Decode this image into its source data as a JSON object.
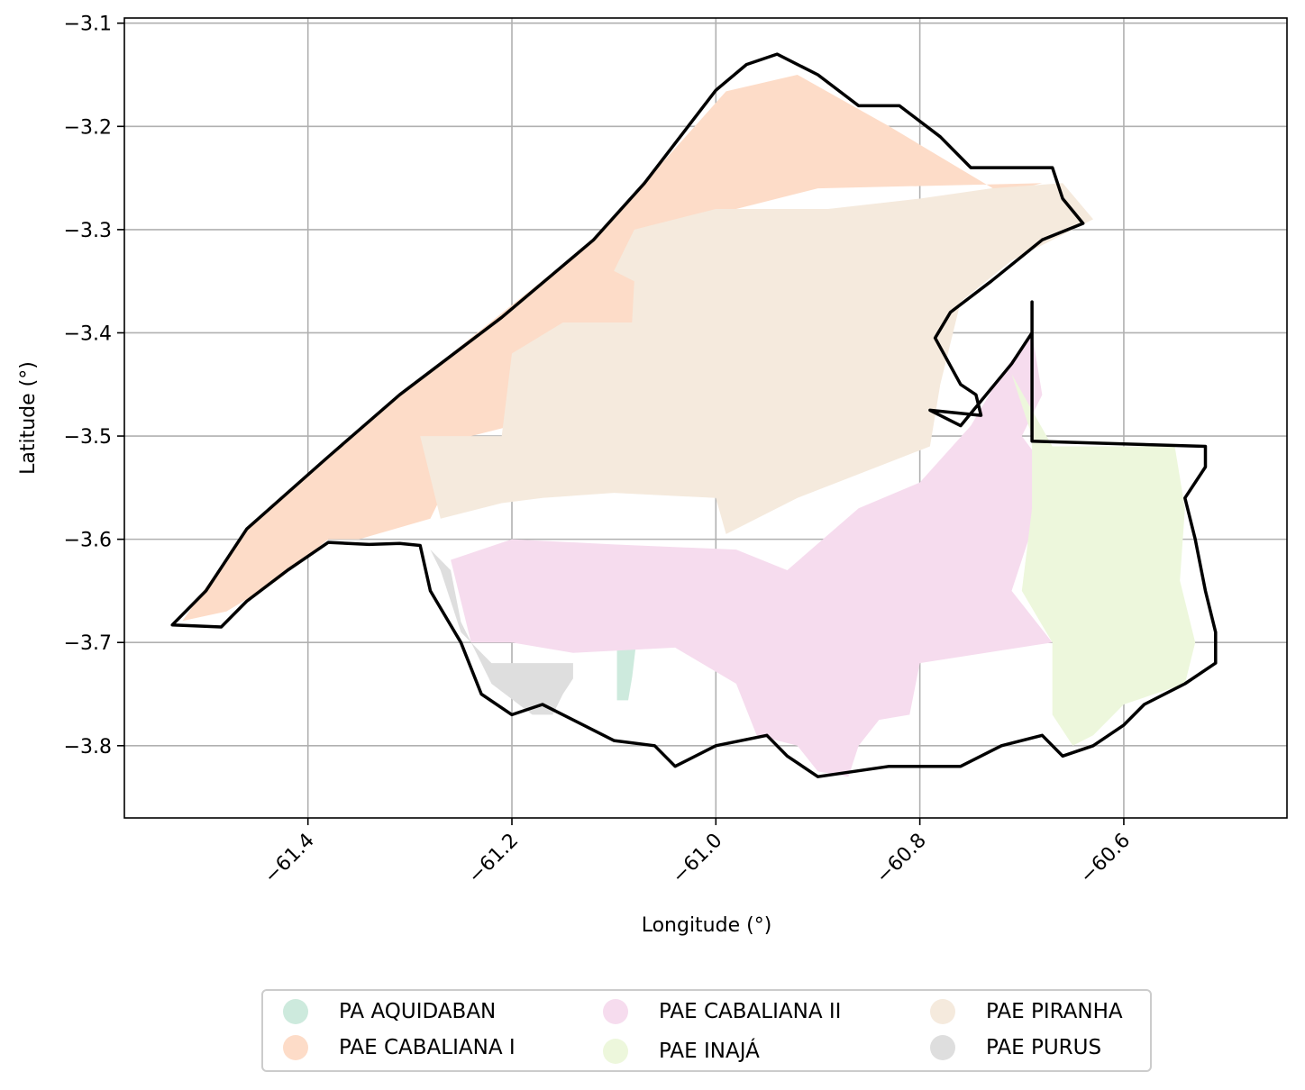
{
  "chart_data": {
    "type": "map",
    "xlabel": "Longitude (°)",
    "ylabel": "Latitude (°)",
    "xlim": [
      -61.58,
      -60.44
    ],
    "ylim": [
      -3.87,
      -3.095
    ],
    "x_ticks": [
      -61.4,
      -61.2,
      -61.0,
      -60.8,
      -60.6
    ],
    "x_tick_labels": [
      "−61.4",
      "−61.2",
      "−61.0",
      "−60.8",
      "−60.6"
    ],
    "y_ticks": [
      -3.1,
      -3.2,
      -3.3,
      -3.4,
      -3.5,
      -3.6,
      -3.7,
      -3.8
    ],
    "y_tick_labels": [
      "−3.1",
      "−3.2",
      "−3.3",
      "−3.4",
      "−3.5",
      "−3.6",
      "−3.7",
      "−3.8"
    ],
    "grid": true,
    "legend_placement": "bottom-center",
    "boundary_color": "#000000",
    "regions": [
      {
        "name": "PA AQUIDABAN",
        "color": "#cdeadd",
        "polygon": [
          [
            -61.097,
            -3.693
          ],
          [
            -61.077,
            -3.691
          ],
          [
            -61.082,
            -3.733
          ],
          [
            -61.086,
            -3.756
          ],
          [
            -61.097,
            -3.756
          ]
        ]
      },
      {
        "name": "PAE CABALIANA I",
        "color": "#fddcc8",
        "polygon": [
          [
            -61.523,
            -3.679
          ],
          [
            -61.46,
            -3.59
          ],
          [
            -61.31,
            -3.46
          ],
          [
            -61.12,
            -3.31
          ],
          [
            -60.99,
            -3.166
          ],
          [
            -60.92,
            -3.15
          ],
          [
            -60.83,
            -3.2
          ],
          [
            -60.72,
            -3.265
          ],
          [
            -60.68,
            -3.255
          ],
          [
            -60.9,
            -3.26
          ],
          [
            -61.06,
            -3.3
          ],
          [
            -61.085,
            -3.33
          ],
          [
            -61.06,
            -3.38
          ],
          [
            -61.06,
            -3.45
          ],
          [
            -61.07,
            -3.45
          ],
          [
            -61.17,
            -3.41
          ],
          [
            -61.2,
            -3.49
          ],
          [
            -61.24,
            -3.5
          ],
          [
            -61.27,
            -3.56
          ],
          [
            -61.28,
            -3.58
          ],
          [
            -61.35,
            -3.6
          ],
          [
            -61.38,
            -3.6
          ],
          [
            -61.43,
            -3.64
          ],
          [
            -61.48,
            -3.67
          ]
        ]
      },
      {
        "name": "PAE PIRANHA",
        "color": "#f5eadd",
        "polygon": [
          [
            -61.27,
            -3.58
          ],
          [
            -61.29,
            -3.5
          ],
          [
            -61.21,
            -3.5
          ],
          [
            -61.2,
            -3.42
          ],
          [
            -61.15,
            -3.39
          ],
          [
            -61.075,
            -3.39
          ],
          [
            -61.075,
            -3.44
          ],
          [
            -61.077,
            -3.45
          ],
          [
            -61.085,
            -3.44
          ],
          [
            -61.08,
            -3.35
          ],
          [
            -61.1,
            -3.34
          ],
          [
            -61.08,
            -3.3
          ],
          [
            -61.0,
            -3.28
          ],
          [
            -60.89,
            -3.28
          ],
          [
            -60.8,
            -3.27
          ],
          [
            -60.73,
            -3.26
          ],
          [
            -60.66,
            -3.255
          ],
          [
            -60.63,
            -3.29
          ],
          [
            -60.71,
            -3.33
          ],
          [
            -60.76,
            -3.37
          ],
          [
            -60.78,
            -3.45
          ],
          [
            -60.79,
            -3.51
          ],
          [
            -60.92,
            -3.56
          ],
          [
            -60.99,
            -3.595
          ],
          [
            -61.0,
            -3.56
          ],
          [
            -61.1,
            -3.555
          ],
          [
            -61.17,
            -3.56
          ],
          [
            -61.21,
            -3.565
          ],
          [
            -61.25,
            -3.575
          ]
        ]
      },
      {
        "name": "PAE CABALIANA II",
        "color": "#f6dcee",
        "polygon": [
          [
            -61.26,
            -3.62
          ],
          [
            -61.2,
            -3.6
          ],
          [
            -61.1,
            -3.605
          ],
          [
            -60.98,
            -3.61
          ],
          [
            -60.93,
            -3.63
          ],
          [
            -60.86,
            -3.57
          ],
          [
            -60.8,
            -3.545
          ],
          [
            -60.75,
            -3.49
          ],
          [
            -60.72,
            -3.44
          ],
          [
            -60.69,
            -3.4
          ],
          [
            -60.68,
            -3.46
          ],
          [
            -60.7,
            -3.5
          ],
          [
            -60.67,
            -3.54
          ],
          [
            -60.69,
            -3.59
          ],
          [
            -60.71,
            -3.65
          ],
          [
            -60.67,
            -3.7
          ],
          [
            -60.8,
            -3.72
          ],
          [
            -60.81,
            -3.77
          ],
          [
            -60.84,
            -3.775
          ],
          [
            -60.86,
            -3.8
          ],
          [
            -60.87,
            -3.83
          ],
          [
            -60.9,
            -3.825
          ],
          [
            -60.92,
            -3.8
          ],
          [
            -60.96,
            -3.79
          ],
          [
            -60.98,
            -3.74
          ],
          [
            -61.04,
            -3.705
          ],
          [
            -61.14,
            -3.71
          ],
          [
            -61.2,
            -3.7
          ],
          [
            -61.24,
            -3.7
          ]
        ]
      },
      {
        "name": "PAE INAJÁ",
        "color": "#edf7dc",
        "polygon": [
          [
            -60.71,
            -3.44
          ],
          [
            -60.67,
            -3.51
          ],
          [
            -60.55,
            -3.51
          ],
          [
            -60.54,
            -3.57
          ],
          [
            -60.545,
            -3.64
          ],
          [
            -60.53,
            -3.7
          ],
          [
            -60.54,
            -3.74
          ],
          [
            -60.6,
            -3.76
          ],
          [
            -60.63,
            -3.79
          ],
          [
            -60.65,
            -3.8
          ],
          [
            -60.67,
            -3.77
          ],
          [
            -60.67,
            -3.7
          ],
          [
            -60.7,
            -3.65
          ],
          [
            -60.69,
            -3.57
          ],
          [
            -60.69,
            -3.5
          ]
        ]
      },
      {
        "name": "PAE PURUS",
        "color": "#dedede",
        "polygon": [
          [
            -61.28,
            -3.61
          ],
          [
            -61.26,
            -3.63
          ],
          [
            -61.25,
            -3.68
          ],
          [
            -61.22,
            -3.74
          ],
          [
            -61.18,
            -3.77
          ],
          [
            -61.16,
            -3.77
          ],
          [
            -61.15,
            -3.75
          ],
          [
            -61.14,
            -3.735
          ],
          [
            -61.14,
            -3.72
          ],
          [
            -61.22,
            -3.72
          ],
          [
            -61.25,
            -3.69
          ],
          [
            -61.27,
            -3.63
          ]
        ]
      }
    ],
    "boundary": [
      [
        -61.533,
        -3.683
      ],
      [
        -61.5,
        -3.65
      ],
      [
        -61.46,
        -3.59
      ],
      [
        -61.38,
        -3.52
      ],
      [
        -61.31,
        -3.46
      ],
      [
        -61.21,
        -3.385
      ],
      [
        -61.12,
        -3.31
      ],
      [
        -61.07,
        -3.255
      ],
      [
        -61.0,
        -3.165
      ],
      [
        -60.97,
        -3.14
      ],
      [
        -60.94,
        -3.13
      ],
      [
        -60.9,
        -3.15
      ],
      [
        -60.86,
        -3.18
      ],
      [
        -60.82,
        -3.18
      ],
      [
        -60.78,
        -3.21
      ],
      [
        -60.75,
        -3.24
      ],
      [
        -60.71,
        -3.24
      ],
      [
        -60.67,
        -3.24
      ],
      [
        -60.66,
        -3.27
      ],
      [
        -60.64,
        -3.294
      ],
      [
        -60.68,
        -3.31
      ],
      [
        -60.73,
        -3.35
      ],
      [
        -60.77,
        -3.38
      ],
      [
        -60.785,
        -3.405
      ],
      [
        -60.76,
        -3.45
      ],
      [
        -60.745,
        -3.46
      ],
      [
        -60.74,
        -3.48
      ],
      [
        -60.79,
        -3.475
      ],
      [
        -60.76,
        -3.49
      ],
      [
        -60.71,
        -3.43
      ],
      [
        -60.69,
        -3.4
      ],
      [
        -60.69,
        -3.37
      ],
      [
        -60.69,
        -3.505
      ],
      [
        -60.52,
        -3.51
      ],
      [
        -60.52,
        -3.53
      ],
      [
        -60.54,
        -3.56
      ],
      [
        -60.53,
        -3.6
      ],
      [
        -60.52,
        -3.65
      ],
      [
        -60.51,
        -3.69
      ],
      [
        -60.51,
        -3.72
      ],
      [
        -60.54,
        -3.74
      ],
      [
        -60.58,
        -3.76
      ],
      [
        -60.6,
        -3.78
      ],
      [
        -60.63,
        -3.8
      ],
      [
        -60.66,
        -3.81
      ],
      [
        -60.68,
        -3.79
      ],
      [
        -60.72,
        -3.8
      ],
      [
        -60.76,
        -3.82
      ],
      [
        -60.83,
        -3.82
      ],
      [
        -60.9,
        -3.83
      ],
      [
        -60.93,
        -3.81
      ],
      [
        -60.95,
        -3.79
      ],
      [
        -61.0,
        -3.8
      ],
      [
        -61.04,
        -3.82
      ],
      [
        -61.06,
        -3.8
      ],
      [
        -61.1,
        -3.795
      ],
      [
        -61.15,
        -3.77
      ],
      [
        -61.17,
        -3.76
      ],
      [
        -61.2,
        -3.77
      ],
      [
        -61.23,
        -3.75
      ],
      [
        -61.25,
        -3.7
      ],
      [
        -61.28,
        -3.65
      ],
      [
        -61.29,
        -3.606
      ],
      [
        -61.31,
        -3.604
      ],
      [
        -61.34,
        -3.605
      ],
      [
        -61.38,
        -3.603
      ],
      [
        -61.42,
        -3.63
      ],
      [
        -61.46,
        -3.66
      ],
      [
        -61.485,
        -3.685
      ],
      [
        -61.533,
        -3.683
      ]
    ]
  },
  "legend": {
    "items": [
      {
        "label": "PA AQUIDABAN",
        "color": "#cdeadd"
      },
      {
        "label": "PAE CABALIANA I",
        "color": "#fddcc8"
      },
      {
        "label": "PAE CABALIANA II",
        "color": "#f6dcee"
      },
      {
        "label": "PAE INAJÁ",
        "color": "#edf7dc"
      },
      {
        "label": "PAE PIRANHA",
        "color": "#f5eadd"
      },
      {
        "label": "PAE PURUS",
        "color": "#dedede"
      }
    ]
  }
}
